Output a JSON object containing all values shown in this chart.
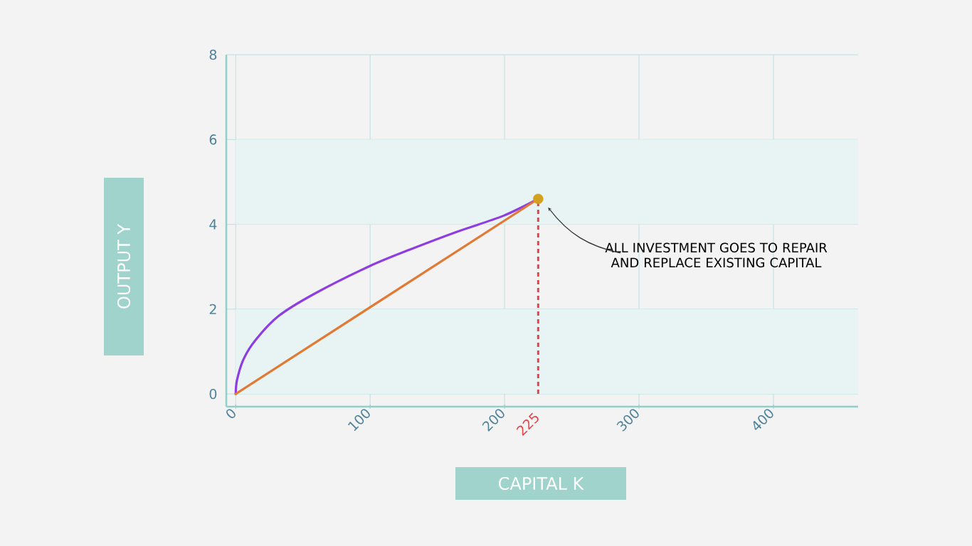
{
  "chart_data": {
    "type": "line",
    "xlabel": "CAPITAL K",
    "ylabel": "OUTPUT Y",
    "xlim": [
      -7,
      463
    ],
    "ylim": [
      -0.3,
      8
    ],
    "xticks": [
      0,
      100,
      200,
      300,
      400
    ],
    "yticks": [
      0,
      2,
      4,
      6,
      8
    ],
    "grid": true,
    "series": [
      {
        "color": "#8e3ee0",
        "x": [
          0,
          1,
          6,
          15,
          32,
          59,
          100,
          130,
          165,
          199,
          225
        ],
        "values": [
          0,
          0.33,
          0.83,
          1.28,
          1.84,
          2.37,
          3.02,
          3.41,
          3.83,
          4.2,
          4.6
        ]
      },
      {
        "color": "#e07a35",
        "x": [
          0,
          225
        ],
        "values": [
          0,
          4.6
        ]
      },
      {
        "type": "scatter",
        "color": "#d4a020",
        "marker": "circle",
        "x": [
          225
        ],
        "values": [
          4.6
        ]
      }
    ],
    "ref_lines": [
      {
        "axis": "x",
        "value": 225,
        "label": "225",
        "color": "#e8434a",
        "line_style": "dashed"
      }
    ],
    "bands": [
      {
        "axis": "y",
        "from": 0,
        "to": 2,
        "color": "#e8f4f4"
      },
      {
        "axis": "y",
        "from": 4,
        "to": 6,
        "color": "#e8f4f4"
      }
    ],
    "annotations": [
      "ALL INVESTMENT GOES TO REPAIR AND REPLACE EXISTING CAPITAL"
    ]
  }
}
